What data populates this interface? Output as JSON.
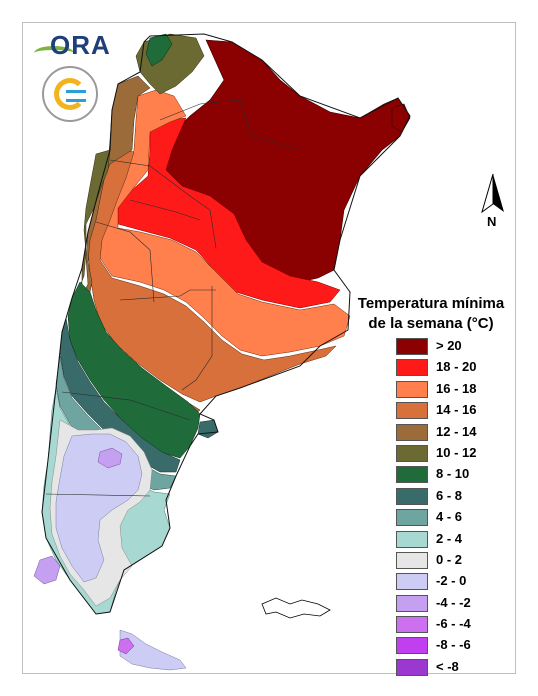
{
  "legend": {
    "title_line1": "Temperatura mínima",
    "title_line2": "de la semana (°C)",
    "items": [
      {
        "label": "> 20",
        "color": "#8b0000"
      },
      {
        "label": "18 - 20",
        "color": "#ff1a1a"
      },
      {
        "label": "16 - 18",
        "color": "#ff7f4d"
      },
      {
        "label": "14 - 16",
        "color": "#d8703c"
      },
      {
        "label": "12 - 14",
        "color": "#9c6b3a"
      },
      {
        "label": "10 - 12",
        "color": "#6b6a32"
      },
      {
        "label": "8 - 10",
        "color": "#1f6b3a"
      },
      {
        "label": "6 - 8",
        "color": "#3a6b6b"
      },
      {
        "label": "4 - 6",
        "color": "#6fa5a0"
      },
      {
        "label": "2 - 4",
        "color": "#a8d8d2"
      },
      {
        "label": "0 - 2",
        "color": "#e6e6e6"
      },
      {
        "label": "-2 - 0",
        "color": "#ccccf5"
      },
      {
        "label": "-4 - -2",
        "color": "#c5a0f0"
      },
      {
        "label": "-6 - -4",
        "color": "#cc70f0"
      },
      {
        "label": "-8 - -6",
        "color": "#c040f0"
      },
      {
        "label": "< -8",
        "color": "#9a38d0"
      }
    ]
  },
  "logos": {
    "ora_text": "ORA"
  },
  "north_label": "N"
}
